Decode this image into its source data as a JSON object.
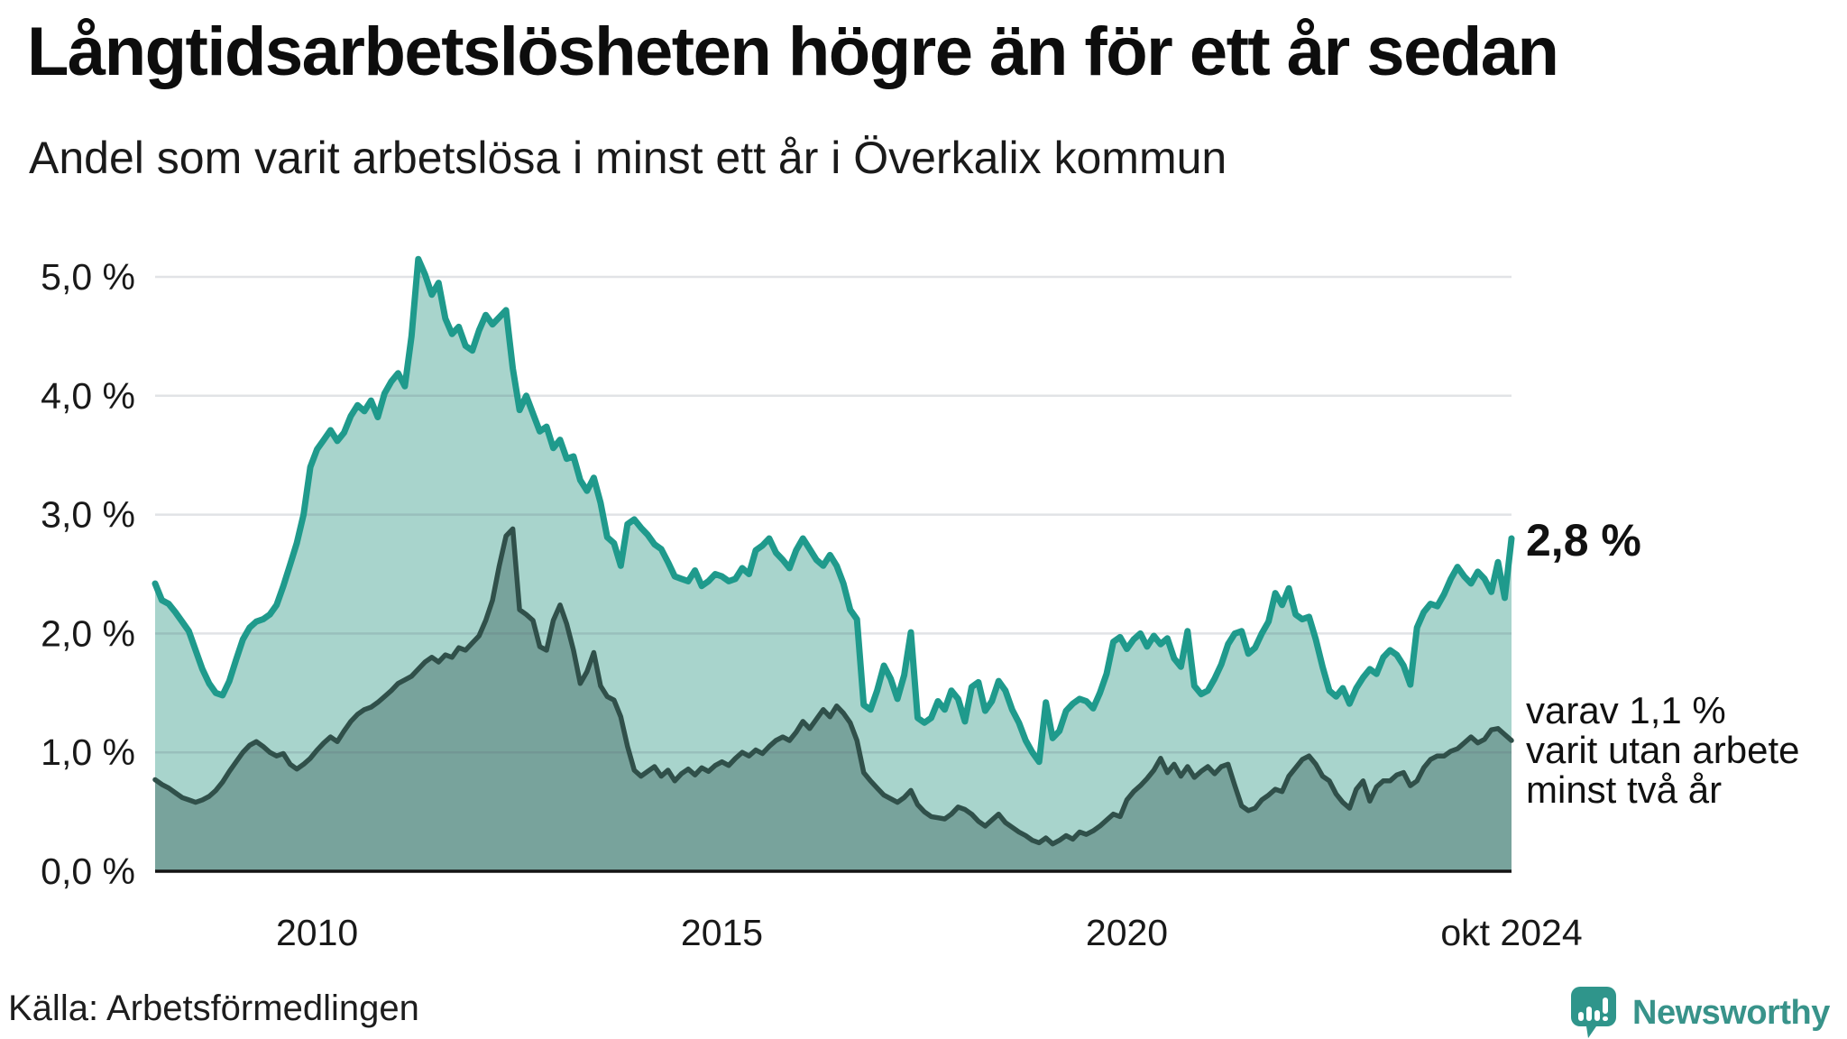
{
  "header": {
    "title": "Långtidsarbetslösheten högre än för ett år sedan",
    "subtitle": "Andel som varit arbetslösa i minst ett år i Överkalix kommun"
  },
  "annotations": {
    "latest_value": "2,8 %",
    "secondary_line1": "varav 1,1 %",
    "secondary_line2": "varit utan arbete",
    "secondary_line3": "minst två år"
  },
  "source": {
    "label": "Källa: Arbetsförmedlingen"
  },
  "branding": {
    "wordmark": "Newsworthy",
    "icon": "newsworthy-speech-bubble-chart-icon",
    "color": "#38938a"
  },
  "chart_data": {
    "type": "area",
    "title": "Långtidsarbetslösheten högre än för ett år sedan",
    "subtitle": "Andel som varit arbetslösa i minst ett år i Överkalix kommun",
    "unit": "%",
    "frequency": "monthly",
    "x_start": "2008-01",
    "x_end": "2024-10",
    "grid": "horizontal",
    "ylim": [
      0,
      5.3
    ],
    "y_ticks": [
      {
        "label": "0,0 %",
        "value": 0
      },
      {
        "label": "1,0 %",
        "value": 1
      },
      {
        "label": "2,0 %",
        "value": 2
      },
      {
        "label": "3,0 %",
        "value": 3
      },
      {
        "label": "4,0 %",
        "value": 4
      },
      {
        "label": "5,0 %",
        "value": 5
      }
    ],
    "x_ticks": [
      {
        "label": "2010",
        "month_index": 24
      },
      {
        "label": "2015",
        "month_index": 84
      },
      {
        "label": "2020",
        "month_index": 144
      },
      {
        "label": "okt 2024",
        "month_index": 201
      }
    ],
    "series": [
      {
        "name": "Arbetslösa minst ett år",
        "end_label": "2,8 %",
        "line_color": "#1f9a8c",
        "fill_color": "#a8d4cc",
        "values": [
          2.42,
          2.28,
          2.25,
          2.18,
          2.1,
          2.02,
          1.86,
          1.7,
          1.58,
          1.5,
          1.48,
          1.6,
          1.78,
          1.95,
          2.05,
          2.1,
          2.12,
          2.16,
          2.24,
          2.4,
          2.58,
          2.76,
          3.0,
          3.4,
          3.55,
          3.63,
          3.71,
          3.62,
          3.69,
          3.83,
          3.92,
          3.87,
          3.96,
          3.82,
          4.02,
          4.12,
          4.19,
          4.08,
          4.5,
          5.15,
          5.02,
          4.85,
          4.95,
          4.65,
          4.52,
          4.58,
          4.42,
          4.38,
          4.55,
          4.68,
          4.6,
          4.66,
          4.72,
          4.23,
          3.88,
          4.0,
          3.85,
          3.7,
          3.74,
          3.56,
          3.63,
          3.47,
          3.49,
          3.29,
          3.2,
          3.31,
          3.1,
          2.81,
          2.76,
          2.57,
          2.92,
          2.96,
          2.89,
          2.83,
          2.75,
          2.71,
          2.6,
          2.48,
          2.46,
          2.44,
          2.53,
          2.4,
          2.44,
          2.5,
          2.48,
          2.44,
          2.46,
          2.55,
          2.5,
          2.7,
          2.74,
          2.8,
          2.68,
          2.62,
          2.55,
          2.7,
          2.8,
          2.71,
          2.62,
          2.57,
          2.66,
          2.57,
          2.42,
          2.2,
          2.12,
          1.4,
          1.36,
          1.52,
          1.73,
          1.62,
          1.45,
          1.65,
          2.01,
          1.29,
          1.25,
          1.29,
          1.43,
          1.36,
          1.52,
          1.45,
          1.26,
          1.55,
          1.59,
          1.35,
          1.43,
          1.6,
          1.52,
          1.36,
          1.25,
          1.1,
          1.0,
          0.92,
          1.42,
          1.12,
          1.18,
          1.35,
          1.41,
          1.45,
          1.43,
          1.37,
          1.5,
          1.66,
          1.93,
          1.97,
          1.87,
          1.95,
          2.0,
          1.89,
          1.98,
          1.91,
          1.96,
          1.79,
          1.72,
          2.02,
          1.56,
          1.49,
          1.52,
          1.62,
          1.74,
          1.91,
          2.0,
          2.02,
          1.83,
          1.88,
          2.0,
          2.1,
          2.34,
          2.24,
          2.38,
          2.16,
          2.12,
          2.14,
          1.95,
          1.72,
          1.52,
          1.47,
          1.54,
          1.41,
          1.54,
          1.63,
          1.7,
          1.66,
          1.8,
          1.86,
          1.82,
          1.73,
          1.57,
          2.05,
          2.18,
          2.25,
          2.23,
          2.33,
          2.46,
          2.56,
          2.48,
          2.42,
          2.52,
          2.46,
          2.35,
          2.6,
          2.3,
          2.8
        ]
      },
      {
        "name": "Arbetslösa minst två år",
        "end_label": "varav 1,1 % varit utan arbete minst två år",
        "line_color": "#30504a",
        "fill_color": "#78a39c",
        "values": [
          0.77,
          0.73,
          0.7,
          0.66,
          0.62,
          0.6,
          0.58,
          0.6,
          0.63,
          0.68,
          0.75,
          0.84,
          0.92,
          1.0,
          1.06,
          1.09,
          1.05,
          1.0,
          0.97,
          0.99,
          0.9,
          0.86,
          0.9,
          0.95,
          1.02,
          1.08,
          1.13,
          1.09,
          1.18,
          1.26,
          1.32,
          1.36,
          1.38,
          1.42,
          1.47,
          1.52,
          1.58,
          1.61,
          1.64,
          1.7,
          1.76,
          1.8,
          1.76,
          1.82,
          1.8,
          1.88,
          1.86,
          1.92,
          1.98,
          2.11,
          2.28,
          2.57,
          2.82,
          2.88,
          2.2,
          2.16,
          2.11,
          1.89,
          1.86,
          2.11,
          2.24,
          2.08,
          1.86,
          1.58,
          1.68,
          1.84,
          1.56,
          1.47,
          1.44,
          1.3,
          1.05,
          0.85,
          0.8,
          0.84,
          0.88,
          0.8,
          0.85,
          0.76,
          0.82,
          0.86,
          0.81,
          0.87,
          0.84,
          0.89,
          0.92,
          0.89,
          0.95,
          1.0,
          0.97,
          1.02,
          0.99,
          1.05,
          1.1,
          1.13,
          1.1,
          1.17,
          1.26,
          1.2,
          1.28,
          1.36,
          1.3,
          1.39,
          1.33,
          1.25,
          1.1,
          0.83,
          0.76,
          0.7,
          0.64,
          0.61,
          0.58,
          0.62,
          0.68,
          0.56,
          0.5,
          0.46,
          0.45,
          0.44,
          0.48,
          0.54,
          0.52,
          0.48,
          0.42,
          0.38,
          0.43,
          0.48,
          0.41,
          0.37,
          0.33,
          0.3,
          0.26,
          0.24,
          0.28,
          0.23,
          0.26,
          0.3,
          0.27,
          0.33,
          0.31,
          0.34,
          0.38,
          0.43,
          0.48,
          0.46,
          0.6,
          0.67,
          0.72,
          0.78,
          0.85,
          0.95,
          0.83,
          0.9,
          0.8,
          0.88,
          0.79,
          0.84,
          0.88,
          0.82,
          0.88,
          0.9,
          0.72,
          0.55,
          0.51,
          0.53,
          0.6,
          0.64,
          0.69,
          0.67,
          0.8,
          0.87,
          0.94,
          0.97,
          0.9,
          0.8,
          0.76,
          0.65,
          0.58,
          0.53,
          0.69,
          0.76,
          0.59,
          0.71,
          0.76,
          0.76,
          0.81,
          0.83,
          0.72,
          0.76,
          0.87,
          0.94,
          0.97,
          0.97,
          1.01,
          1.03,
          1.08,
          1.13,
          1.08,
          1.11,
          1.19,
          1.2,
          1.15,
          1.1
        ]
      }
    ]
  }
}
